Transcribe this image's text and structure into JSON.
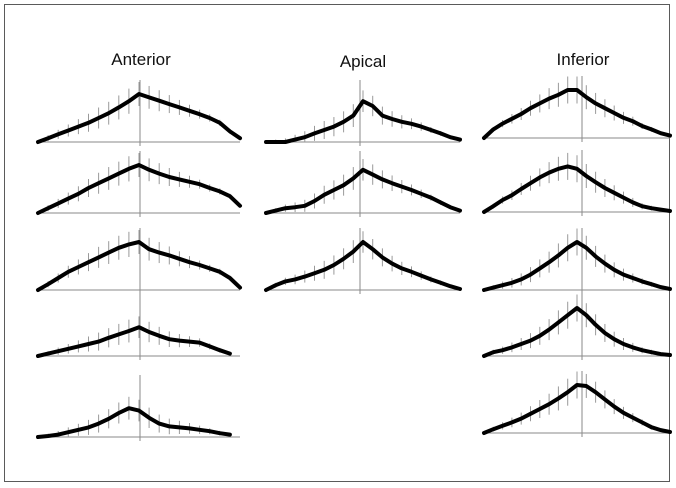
{
  "chart_data": {
    "type": "line",
    "columns": [
      {
        "title": "Anterior",
        "panels": [
          {
            "x": [
              -1,
              -0.9,
              -0.8,
              -0.7,
              -0.6,
              -0.5,
              -0.4,
              -0.3,
              -0.2,
              -0.1,
              0,
              0.1,
              0.2,
              0.3,
              0.4,
              0.5,
              0.6,
              0.7,
              0.8,
              0.9,
              1.0
            ],
            "y": [
              0.0,
              0.08,
              0.16,
              0.24,
              0.32,
              0.4,
              0.5,
              0.6,
              0.72,
              0.85,
              1.0,
              0.93,
              0.86,
              0.79,
              0.72,
              0.65,
              0.58,
              0.5,
              0.4,
              0.22,
              0.08
            ],
            "spread": [
              0.05,
              0.1,
              0.15,
              0.2,
              0.25,
              0.3,
              0.35,
              0.38,
              0.4,
              0.42,
              0.4,
              0.38,
              0.35,
              0.3,
              0.25,
              0.2,
              0.15,
              0.12,
              0.1,
              0.08,
              0.05
            ]
          },
          {
            "x": [
              -1,
              -0.9,
              -0.8,
              -0.7,
              -0.6,
              -0.5,
              -0.4,
              -0.3,
              -0.2,
              -0.1,
              0,
              0.1,
              0.2,
              0.3,
              0.4,
              0.5,
              0.6,
              0.7,
              0.8,
              0.9,
              1.0
            ],
            "y": [
              0.0,
              0.1,
              0.2,
              0.3,
              0.4,
              0.52,
              0.62,
              0.72,
              0.82,
              0.92,
              1.0,
              0.9,
              0.82,
              0.75,
              0.7,
              0.65,
              0.6,
              0.52,
              0.45,
              0.35,
              0.15
            ],
            "spread": [
              0.05,
              0.1,
              0.15,
              0.2,
              0.25,
              0.3,
              0.35,
              0.38,
              0.4,
              0.42,
              0.4,
              0.38,
              0.35,
              0.3,
              0.25,
              0.2,
              0.15,
              0.12,
              0.1,
              0.08,
              0.05
            ]
          },
          {
            "x": [
              -1,
              -0.9,
              -0.8,
              -0.7,
              -0.6,
              -0.5,
              -0.4,
              -0.3,
              -0.2,
              -0.1,
              0,
              0.1,
              0.2,
              0.3,
              0.4,
              0.5,
              0.6,
              0.7,
              0.8,
              0.9,
              1.0
            ],
            "y": [
              0.0,
              0.12,
              0.25,
              0.38,
              0.48,
              0.58,
              0.68,
              0.78,
              0.88,
              0.95,
              1.0,
              0.85,
              0.78,
              0.72,
              0.65,
              0.58,
              0.52,
              0.45,
              0.38,
              0.25,
              0.05
            ],
            "spread": [
              0.05,
              0.1,
              0.15,
              0.2,
              0.25,
              0.3,
              0.35,
              0.38,
              0.4,
              0.42,
              0.4,
              0.38,
              0.35,
              0.3,
              0.25,
              0.2,
              0.15,
              0.12,
              0.1,
              0.08,
              0.05
            ]
          },
          {
            "x": [
              -1,
              -0.9,
              -0.8,
              -0.7,
              -0.6,
              -0.5,
              -0.4,
              -0.3,
              -0.2,
              -0.1,
              0,
              0.1,
              0.2,
              0.3,
              0.4,
              0.5,
              0.6,
              0.7,
              0.8,
              0.9
            ],
            "y": [
              0.0,
              0.05,
              0.1,
              0.15,
              0.2,
              0.25,
              0.3,
              0.38,
              0.45,
              0.52,
              0.6,
              0.5,
              0.42,
              0.35,
              0.32,
              0.3,
              0.28,
              0.2,
              0.12,
              0.05
            ],
            "spread": [
              0.05,
              0.08,
              0.12,
              0.16,
              0.2,
              0.25,
              0.3,
              0.32,
              0.35,
              0.38,
              0.36,
              0.34,
              0.3,
              0.26,
              0.22,
              0.18,
              0.14,
              0.1,
              0.08,
              0.05
            ]
          },
          {
            "x": [
              -1,
              -0.9,
              -0.8,
              -0.7,
              -0.6,
              -0.5,
              -0.4,
              -0.3,
              -0.2,
              -0.1,
              0,
              0.1,
              0.2,
              0.3,
              0.4,
              0.5,
              0.6,
              0.7,
              0.8,
              0.9
            ],
            "y": [
              0.0,
              0.02,
              0.05,
              0.1,
              0.15,
              0.2,
              0.28,
              0.38,
              0.5,
              0.6,
              0.55,
              0.4,
              0.28,
              0.22,
              0.2,
              0.18,
              0.15,
              0.12,
              0.08,
              0.05
            ],
            "spread": [
              0.05,
              0.08,
              0.12,
              0.16,
              0.2,
              0.25,
              0.3,
              0.32,
              0.35,
              0.38,
              0.36,
              0.34,
              0.3,
              0.26,
              0.22,
              0.18,
              0.14,
              0.1,
              0.08,
              0.05
            ]
          }
        ]
      },
      {
        "title": "Apical",
        "panels": [
          {
            "x": [
              -1,
              -0.9,
              -0.8,
              -0.7,
              -0.6,
              -0.5,
              -0.4,
              -0.3,
              -0.2,
              -0.1,
              0,
              0.1,
              0.2,
              0.3,
              0.4,
              0.5,
              0.6,
              0.7,
              0.8,
              0.9,
              1.0
            ],
            "y": [
              0.0,
              0.0,
              0.0,
              0.05,
              0.1,
              0.18,
              0.25,
              0.32,
              0.42,
              0.55,
              0.85,
              0.75,
              0.55,
              0.48,
              0.42,
              0.38,
              0.32,
              0.25,
              0.18,
              0.1,
              0.05
            ],
            "spread": [
              0.05,
              0.08,
              0.12,
              0.16,
              0.2,
              0.25,
              0.3,
              0.32,
              0.35,
              0.38,
              0.36,
              0.34,
              0.3,
              0.26,
              0.22,
              0.18,
              0.14,
              0.1,
              0.08,
              0.05,
              0.04
            ]
          },
          {
            "x": [
              -1,
              -0.9,
              -0.8,
              -0.7,
              -0.6,
              -0.5,
              -0.4,
              -0.3,
              -0.2,
              -0.1,
              0,
              0.1,
              0.2,
              0.3,
              0.4,
              0.5,
              0.6,
              0.7,
              0.8,
              0.9,
              1.0
            ],
            "y": [
              0.0,
              0.05,
              0.1,
              0.12,
              0.15,
              0.25,
              0.38,
              0.48,
              0.58,
              0.72,
              0.9,
              0.8,
              0.7,
              0.62,
              0.55,
              0.48,
              0.4,
              0.32,
              0.22,
              0.12,
              0.05
            ],
            "spread": [
              0.05,
              0.08,
              0.12,
              0.16,
              0.2,
              0.25,
              0.3,
              0.32,
              0.35,
              0.38,
              0.36,
              0.34,
              0.3,
              0.26,
              0.22,
              0.18,
              0.14,
              0.1,
              0.08,
              0.05,
              0.04
            ]
          },
          {
            "x": [
              -1,
              -0.9,
              -0.8,
              -0.7,
              -0.6,
              -0.5,
              -0.4,
              -0.3,
              -0.2,
              -0.1,
              0,
              0.1,
              0.2,
              0.3,
              0.4,
              0.5,
              0.6,
              0.7,
              0.8,
              0.9,
              1.0
            ],
            "y": [
              0.0,
              0.1,
              0.18,
              0.22,
              0.28,
              0.35,
              0.42,
              0.52,
              0.65,
              0.8,
              1.0,
              0.85,
              0.68,
              0.55,
              0.45,
              0.38,
              0.3,
              0.22,
              0.15,
              0.08,
              0.02
            ],
            "spread": [
              0.05,
              0.08,
              0.12,
              0.16,
              0.2,
              0.25,
              0.3,
              0.32,
              0.35,
              0.38,
              0.36,
              0.34,
              0.3,
              0.26,
              0.22,
              0.18,
              0.14,
              0.1,
              0.08,
              0.05,
              0.04
            ]
          }
        ]
      },
      {
        "title": "Inferior",
        "panels": [
          {
            "x": [
              -1,
              -0.9,
              -0.8,
              -0.7,
              -0.6,
              -0.5,
              -0.4,
              -0.3,
              -0.2,
              -0.1,
              0,
              0.1,
              0.2,
              0.3,
              0.4,
              0.5,
              0.6,
              0.7,
              0.8,
              0.9,
              1.0
            ],
            "y": [
              0.0,
              0.18,
              0.3,
              0.4,
              0.5,
              0.62,
              0.72,
              0.82,
              0.9,
              1.0,
              1.0,
              0.85,
              0.72,
              0.62,
              0.52,
              0.42,
              0.35,
              0.25,
              0.18,
              0.1,
              0.05
            ],
            "spread": [
              0.05,
              0.08,
              0.12,
              0.16,
              0.2,
              0.25,
              0.3,
              0.35,
              0.4,
              0.45,
              0.45,
              0.4,
              0.35,
              0.3,
              0.25,
              0.2,
              0.15,
              0.1,
              0.08,
              0.05,
              0.04
            ]
          },
          {
            "x": [
              -1,
              -0.9,
              -0.8,
              -0.7,
              -0.6,
              -0.5,
              -0.4,
              -0.3,
              -0.2,
              -0.1,
              0,
              0.1,
              0.2,
              0.3,
              0.4,
              0.5,
              0.6,
              0.7,
              0.8,
              0.9,
              1.0
            ],
            "y": [
              0.0,
              0.12,
              0.25,
              0.35,
              0.48,
              0.6,
              0.72,
              0.82,
              0.9,
              0.95,
              0.9,
              0.75,
              0.62,
              0.5,
              0.4,
              0.3,
              0.2,
              0.12,
              0.08,
              0.05,
              0.02
            ],
            "spread": [
              0.05,
              0.08,
              0.12,
              0.16,
              0.2,
              0.25,
              0.3,
              0.35,
              0.4,
              0.45,
              0.45,
              0.4,
              0.35,
              0.3,
              0.25,
              0.2,
              0.15,
              0.1,
              0.08,
              0.05,
              0.04
            ]
          },
          {
            "x": [
              -1,
              -0.9,
              -0.8,
              -0.7,
              -0.6,
              -0.5,
              -0.4,
              -0.3,
              -0.2,
              -0.1,
              0,
              0.1,
              0.2,
              0.3,
              0.4,
              0.5,
              0.6,
              0.7,
              0.8,
              0.9,
              1.0
            ],
            "y": [
              0.0,
              0.05,
              0.1,
              0.15,
              0.22,
              0.32,
              0.45,
              0.58,
              0.72,
              0.88,
              1.0,
              0.88,
              0.7,
              0.55,
              0.42,
              0.32,
              0.25,
              0.18,
              0.12,
              0.06,
              0.02
            ],
            "spread": [
              0.05,
              0.08,
              0.12,
              0.16,
              0.2,
              0.25,
              0.3,
              0.35,
              0.4,
              0.45,
              0.45,
              0.4,
              0.35,
              0.3,
              0.25,
              0.2,
              0.15,
              0.1,
              0.08,
              0.05,
              0.04
            ]
          },
          {
            "x": [
              -1,
              -0.9,
              -0.8,
              -0.7,
              -0.6,
              -0.5,
              -0.4,
              -0.3,
              -0.2,
              -0.1,
              0,
              0.1,
              0.2,
              0.3,
              0.4,
              0.5,
              0.6,
              0.7,
              0.8,
              0.9,
              1.0
            ],
            "y": [
              0.0,
              0.08,
              0.12,
              0.18,
              0.25,
              0.32,
              0.42,
              0.55,
              0.7,
              0.85,
              1.0,
              0.85,
              0.65,
              0.48,
              0.35,
              0.25,
              0.18,
              0.12,
              0.08,
              0.04,
              0.02
            ],
            "spread": [
              0.05,
              0.08,
              0.12,
              0.16,
              0.2,
              0.25,
              0.3,
              0.35,
              0.4,
              0.45,
              0.45,
              0.4,
              0.35,
              0.3,
              0.25,
              0.2,
              0.15,
              0.1,
              0.08,
              0.05,
              0.04
            ]
          },
          {
            "x": [
              -1,
              -0.9,
              -0.8,
              -0.7,
              -0.6,
              -0.5,
              -0.4,
              -0.3,
              -0.2,
              -0.1,
              0,
              0.1,
              0.2,
              0.3,
              0.4,
              0.5,
              0.6,
              0.7,
              0.8,
              0.9,
              1.0
            ],
            "y": [
              0.0,
              0.08,
              0.15,
              0.22,
              0.3,
              0.4,
              0.5,
              0.6,
              0.72,
              0.85,
              1.0,
              0.98,
              0.85,
              0.7,
              0.55,
              0.42,
              0.32,
              0.22,
              0.12,
              0.06,
              0.02
            ],
            "spread": [
              0.05,
              0.08,
              0.12,
              0.16,
              0.2,
              0.25,
              0.3,
              0.35,
              0.4,
              0.45,
              0.45,
              0.4,
              0.35,
              0.3,
              0.25,
              0.2,
              0.15,
              0.1,
              0.08,
              0.05,
              0.04
            ]
          }
        ]
      }
    ],
    "grid": false,
    "colors": {
      "curve": "#000000",
      "spread": "#9a9a9a",
      "axis": "#8a8a8a"
    }
  }
}
